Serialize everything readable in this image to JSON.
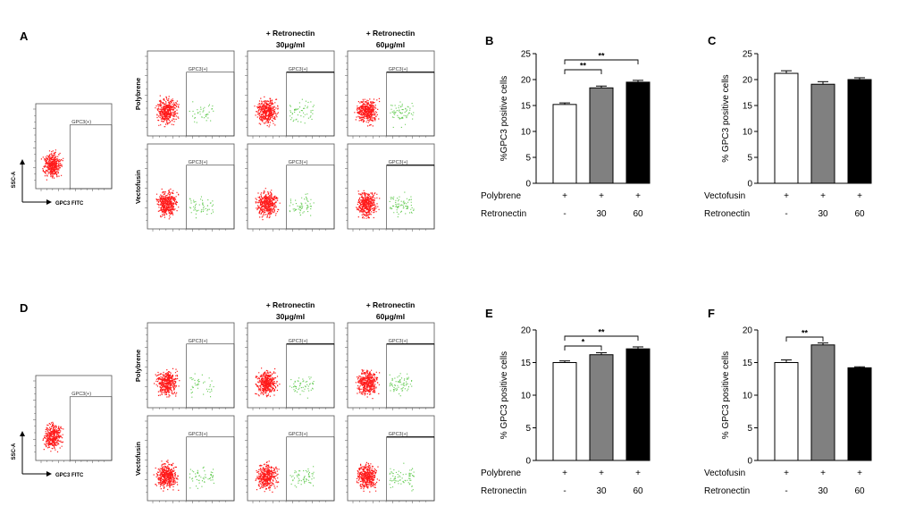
{
  "panel_a": {
    "letter": "A",
    "col_headers": [
      {
        "line1": "+ Retronectin",
        "line2": "30μg/ml"
      },
      {
        "line1": "+ Retronectin",
        "line2": "60μg/ml"
      }
    ],
    "row_labels": [
      "Polybrene",
      "Vectofusin"
    ],
    "gate_label": "GPC3(+)",
    "control_y_label": "SSC-A",
    "control_x_label": "GPC3 FITC"
  },
  "panel_d": {
    "letter": "D",
    "col_headers": [
      {
        "line1": "+ Retronectin",
        "line2": "30μg/ml"
      },
      {
        "line1": "+ Retronectin",
        "line2": "60μg/ml"
      }
    ],
    "row_labels": [
      "Polybrene",
      "Vectofusin"
    ],
    "gate_label": "GPC3(+)",
    "control_y_label": "SSC-A",
    "control_x_label": "GPC3 FITC"
  },
  "colors": {
    "negative_events": "#ff1a1a",
    "positive_events": "#66cc55",
    "bar_1": "#ffffff",
    "bar_2": "#808080",
    "bar_3": "#000000"
  },
  "chart_data": [
    {
      "id": "B",
      "type": "bar",
      "ylabel": "%GPC3 positive cells",
      "ylim": [
        0,
        25
      ],
      "yticks": [
        0,
        5,
        10,
        15,
        20,
        25
      ],
      "values": [
        15.2,
        18.4,
        19.5
      ],
      "errors": [
        0.3,
        0.35,
        0.35
      ],
      "fills": [
        "#ffffff",
        "#808080",
        "#000000"
      ],
      "rows": [
        {
          "label": "Polybrene",
          "cells": [
            "+",
            "+",
            "+"
          ]
        },
        {
          "label": "Retronectin",
          "cells": [
            "-",
            "30",
            "60"
          ]
        }
      ],
      "significance": [
        {
          "from": 0,
          "to": 1,
          "label": "**"
        },
        {
          "from": 0,
          "to": 2,
          "label": "**"
        }
      ]
    },
    {
      "id": "C",
      "type": "bar",
      "ylabel": "% GPC3 positive cells",
      "ylim": [
        0,
        25
      ],
      "yticks": [
        0,
        5,
        10,
        15,
        20,
        25
      ],
      "values": [
        21.2,
        19.1,
        20.0
      ],
      "errors": [
        0.5,
        0.5,
        0.35
      ],
      "fills": [
        "#ffffff",
        "#808080",
        "#000000"
      ],
      "rows": [
        {
          "label": "Vectofusin",
          "cells": [
            "+",
            "+",
            "+"
          ]
        },
        {
          "label": "Retronectin",
          "cells": [
            "-",
            "30",
            "60"
          ]
        }
      ],
      "significance": []
    },
    {
      "id": "E",
      "type": "bar",
      "ylabel": "% GPC3 positive cells",
      "ylim": [
        0,
        20
      ],
      "yticks": [
        0,
        5,
        10,
        15,
        20
      ],
      "values": [
        15.0,
        16.2,
        17.1
      ],
      "errors": [
        0.25,
        0.3,
        0.3
      ],
      "fills": [
        "#ffffff",
        "#808080",
        "#000000"
      ],
      "rows": [
        {
          "label": "Polybrene",
          "cells": [
            "+",
            "+",
            "+"
          ]
        },
        {
          "label": "Retronectin",
          "cells": [
            "-",
            "30",
            "60"
          ]
        }
      ],
      "significance": [
        {
          "from": 0,
          "to": 1,
          "label": "*"
        },
        {
          "from": 0,
          "to": 2,
          "label": "**"
        }
      ]
    },
    {
      "id": "F",
      "type": "bar",
      "ylabel": "% GPC3 positive cells",
      "ylim": [
        0,
        20
      ],
      "yticks": [
        0,
        5,
        10,
        15,
        20
      ],
      "values": [
        15.0,
        17.7,
        14.2
      ],
      "errors": [
        0.4,
        0.3,
        0.15
      ],
      "fills": [
        "#ffffff",
        "#808080",
        "#000000"
      ],
      "rows": [
        {
          "label": "Vectofusin",
          "cells": [
            "+",
            "+",
            "+"
          ]
        },
        {
          "label": "Retronectin",
          "cells": [
            "-",
            "30",
            "60"
          ]
        }
      ],
      "significance": [
        {
          "from": 0,
          "to": 1,
          "label": "**"
        }
      ]
    }
  ]
}
